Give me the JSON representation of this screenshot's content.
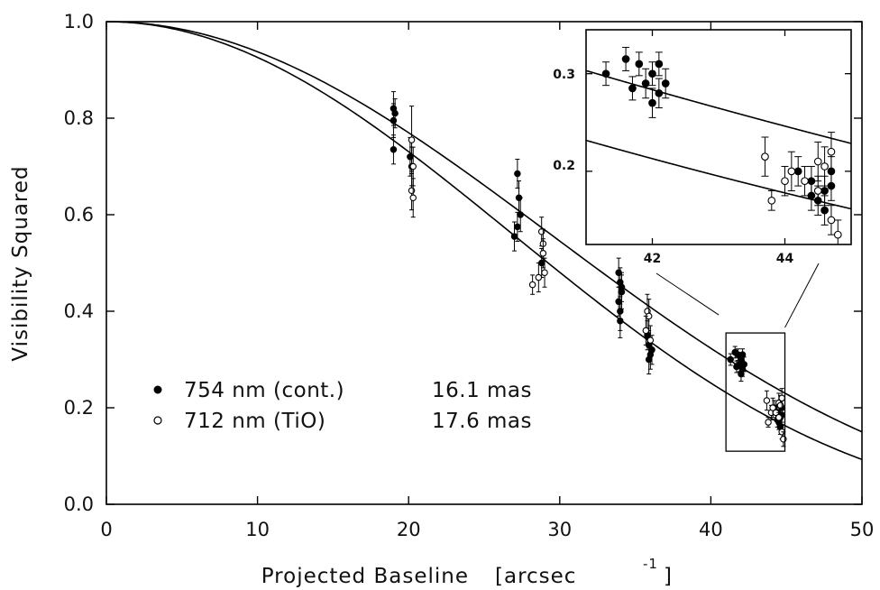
{
  "chart_data": {
    "type": "scatter",
    "title": "",
    "xlabel": "Projected Baseline",
    "xlabel_unit_open": "[arcsec",
    "xlabel_unit_exp": "-1",
    "xlabel_unit_close": "]",
    "ylabel": "Visibility Squared",
    "xlim": [
      0,
      50
    ],
    "ylim": [
      0,
      1
    ],
    "x_ticks": [
      "0",
      "10",
      "20",
      "30",
      "40",
      "50"
    ],
    "y_ticks": [
      "0.0",
      "0.2",
      "0.4",
      "0.6",
      "0.8",
      "1.0"
    ],
    "grid": false,
    "legend_position": "bottom-left",
    "series": [
      {
        "name": "754 nm (cont.)",
        "diameter_label": "16.1 mas",
        "marker": "filled-circle",
        "diameter_mas": 16.1,
        "points": [
          [
            19.0,
            0.795,
            0.035
          ],
          [
            19.0,
            0.82,
            0.035
          ],
          [
            19.1,
            0.81,
            0.03
          ],
          [
            19.0,
            0.735,
            0.03
          ],
          [
            20.1,
            0.72,
            0.04
          ],
          [
            20.2,
            0.7,
            0.04
          ],
          [
            27.0,
            0.555,
            0.03
          ],
          [
            27.2,
            0.685,
            0.03
          ],
          [
            27.3,
            0.635,
            0.035
          ],
          [
            27.4,
            0.6,
            0.035
          ],
          [
            27.2,
            0.575,
            0.03
          ],
          [
            28.8,
            0.5,
            0.03
          ],
          [
            33.9,
            0.48,
            0.03
          ],
          [
            34.0,
            0.46,
            0.03
          ],
          [
            34.1,
            0.44,
            0.035
          ],
          [
            33.9,
            0.42,
            0.03
          ],
          [
            34.0,
            0.4,
            0.04
          ],
          [
            34.0,
            0.38,
            0.035
          ],
          [
            34.1,
            0.45,
            0.03
          ],
          [
            35.8,
            0.35,
            0.03
          ],
          [
            35.9,
            0.33,
            0.03
          ],
          [
            36.0,
            0.31,
            0.03
          ],
          [
            36.1,
            0.32,
            0.03
          ],
          [
            35.9,
            0.3,
            0.03
          ],
          [
            41.3,
            0.3,
            0.012
          ],
          [
            41.6,
            0.315,
            0.012
          ],
          [
            41.8,
            0.31,
            0.012
          ],
          [
            41.9,
            0.29,
            0.015
          ],
          [
            42.0,
            0.3,
            0.012
          ],
          [
            42.1,
            0.28,
            0.015
          ],
          [
            42.0,
            0.27,
            0.015
          ],
          [
            42.2,
            0.29,
            0.015
          ],
          [
            41.7,
            0.285,
            0.012
          ],
          [
            42.1,
            0.31,
            0.012
          ],
          [
            44.2,
            0.2,
            0.015
          ],
          [
            44.4,
            0.19,
            0.015
          ],
          [
            44.5,
            0.17,
            0.015
          ],
          [
            44.6,
            0.18,
            0.015
          ],
          [
            44.7,
            0.2,
            0.015
          ],
          [
            44.6,
            0.16,
            0.015
          ],
          [
            44.4,
            0.175,
            0.015
          ],
          [
            44.7,
            0.185,
            0.015
          ]
        ]
      },
      {
        "name": "712 nm (TiO)",
        "diameter_label": "17.6 mas",
        "marker": "open-circle",
        "diameter_mas": 17.6,
        "points": [
          [
            20.2,
            0.755,
            0.07
          ],
          [
            20.3,
            0.7,
            0.04
          ],
          [
            20.2,
            0.65,
            0.04
          ],
          [
            20.3,
            0.635,
            0.04
          ],
          [
            28.2,
            0.455,
            0.02
          ],
          [
            28.6,
            0.47,
            0.03
          ],
          [
            28.8,
            0.565,
            0.03
          ],
          [
            28.9,
            0.54,
            0.03
          ],
          [
            28.9,
            0.52,
            0.03
          ],
          [
            29.0,
            0.48,
            0.03
          ],
          [
            35.8,
            0.4,
            0.035
          ],
          [
            35.9,
            0.39,
            0.035
          ],
          [
            35.7,
            0.36,
            0.03
          ],
          [
            36.0,
            0.34,
            0.03
          ],
          [
            43.7,
            0.215,
            0.02
          ],
          [
            43.8,
            0.17,
            0.01
          ],
          [
            44.0,
            0.19,
            0.015
          ],
          [
            44.1,
            0.2,
            0.02
          ],
          [
            44.3,
            0.19,
            0.015
          ],
          [
            44.5,
            0.21,
            0.02
          ],
          [
            44.6,
            0.205,
            0.02
          ],
          [
            44.7,
            0.22,
            0.02
          ],
          [
            44.7,
            0.15,
            0.015
          ],
          [
            44.8,
            0.135,
            0.015
          ],
          [
            44.5,
            0.18,
            0.015
          ]
        ]
      }
    ],
    "inset": {
      "xlim": [
        41.0,
        45.0
      ],
      "ylim": [
        0.125,
        0.345
      ],
      "x_ticks": [
        "42",
        "44"
      ],
      "y_ticks": [
        "0.2",
        "0.3"
      ],
      "zoom_box_x": [
        41.0,
        44.9
      ],
      "zoom_box_y": [
        0.11,
        0.355
      ]
    }
  }
}
